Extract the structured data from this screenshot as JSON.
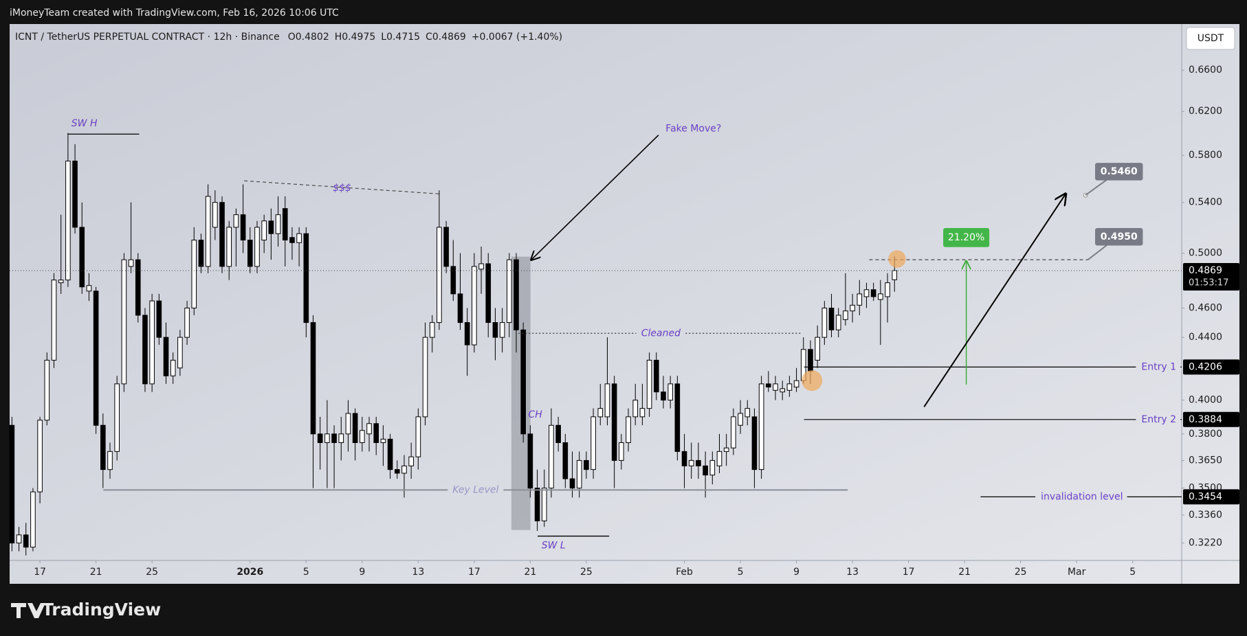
{
  "header": {
    "attribution": "iMoneyTeam created with TradingView.com, Feb 16, 2026 10:06 UTC",
    "brand": "TradingView"
  },
  "chart_data": {
    "type": "candlestick",
    "title": "ICNT / TetherUS PERPETUAL CONTRACT · 12h · Binance",
    "legend": [
      "O0.4802",
      "H0.4975",
      "L0.4715",
      "C0.4869",
      "+0.0067 (+1.40%)"
    ],
    "currency": "USDT",
    "log_scale": true,
    "grid": false,
    "up_color": "#ffffff",
    "down_color": "#000000",
    "ohlc": [
      [
        0.385,
        0.39,
        0.318,
        0.322
      ],
      [
        0.322,
        0.33,
        0.318,
        0.326
      ],
      [
        0.326,
        0.332,
        0.316,
        0.32
      ],
      [
        0.32,
        0.35,
        0.318,
        0.348
      ],
      [
        0.348,
        0.39,
        0.342,
        0.388
      ],
      [
        0.388,
        0.43,
        0.385,
        0.425
      ],
      [
        0.425,
        0.485,
        0.42,
        0.48
      ],
      [
        0.478,
        0.53,
        0.47,
        0.48
      ],
      [
        0.48,
        0.6,
        0.475,
        0.575
      ],
      [
        0.575,
        0.59,
        0.515,
        0.52
      ],
      [
        0.52,
        0.54,
        0.47,
        0.475
      ],
      [
        0.472,
        0.485,
        0.465,
        0.476
      ],
      [
        0.472,
        0.475,
        0.38,
        0.385
      ],
      [
        0.385,
        0.392,
        0.35,
        0.36
      ],
      [
        0.36,
        0.375,
        0.355,
        0.37
      ],
      [
        0.37,
        0.415,
        0.365,
        0.41
      ],
      [
        0.41,
        0.5,
        0.405,
        0.495
      ],
      [
        0.49,
        0.54,
        0.485,
        0.495
      ],
      [
        0.495,
        0.5,
        0.45,
        0.455
      ],
      [
        0.455,
        0.46,
        0.405,
        0.41
      ],
      [
        0.41,
        0.47,
        0.405,
        0.465
      ],
      [
        0.465,
        0.47,
        0.435,
        0.44
      ],
      [
        0.44,
        0.45,
        0.41,
        0.415
      ],
      [
        0.415,
        0.43,
        0.41,
        0.425
      ],
      [
        0.42,
        0.445,
        0.415,
        0.44
      ],
      [
        0.44,
        0.465,
        0.435,
        0.46
      ],
      [
        0.46,
        0.52,
        0.455,
        0.51
      ],
      [
        0.51,
        0.515,
        0.485,
        0.49
      ],
      [
        0.49,
        0.555,
        0.485,
        0.545
      ],
      [
        0.52,
        0.55,
        0.51,
        0.54
      ],
      [
        0.54,
        0.545,
        0.485,
        0.49
      ],
      [
        0.49,
        0.525,
        0.48,
        0.52
      ],
      [
        0.52,
        0.535,
        0.49,
        0.53
      ],
      [
        0.53,
        0.555,
        0.5,
        0.51
      ],
      [
        0.51,
        0.52,
        0.485,
        0.49
      ],
      [
        0.49,
        0.525,
        0.485,
        0.52
      ],
      [
        0.51,
        0.53,
        0.5,
        0.525
      ],
      [
        0.525,
        0.535,
        0.495,
        0.515
      ],
      [
        0.515,
        0.545,
        0.505,
        0.53
      ],
      [
        0.535,
        0.545,
        0.49,
        0.51
      ],
      [
        0.512,
        0.52,
        0.495,
        0.508
      ],
      [
        0.508,
        0.52,
        0.49,
        0.515
      ],
      [
        0.515,
        0.52,
        0.44,
        0.45
      ],
      [
        0.45,
        0.455,
        0.35,
        0.38
      ],
      [
        0.38,
        0.39,
        0.36,
        0.375
      ],
      [
        0.375,
        0.4,
        0.35,
        0.38
      ],
      [
        0.38,
        0.385,
        0.35,
        0.375
      ],
      [
        0.375,
        0.39,
        0.365,
        0.38
      ],
      [
        0.38,
        0.4,
        0.37,
        0.392
      ],
      [
        0.392,
        0.395,
        0.365,
        0.375
      ],
      [
        0.375,
        0.39,
        0.37,
        0.382
      ],
      [
        0.38,
        0.39,
        0.37,
        0.386
      ],
      [
        0.386,
        0.39,
        0.368,
        0.375
      ],
      [
        0.375,
        0.385,
        0.362,
        0.377
      ],
      [
        0.377,
        0.38,
        0.355,
        0.36
      ],
      [
        0.36,
        0.365,
        0.355,
        0.358
      ],
      [
        0.358,
        0.368,
        0.345,
        0.362
      ],
      [
        0.362,
        0.375,
        0.355,
        0.367
      ],
      [
        0.367,
        0.395,
        0.36,
        0.39
      ],
      [
        0.39,
        0.45,
        0.385,
        0.44
      ],
      [
        0.44,
        0.455,
        0.43,
        0.45
      ],
      [
        0.45,
        0.55,
        0.445,
        0.52
      ],
      [
        0.52,
        0.525,
        0.485,
        0.49
      ],
      [
        0.49,
        0.51,
        0.465,
        0.47
      ],
      [
        0.47,
        0.5,
        0.445,
        0.45
      ],
      [
        0.45,
        0.46,
        0.415,
        0.435
      ],
      [
        0.435,
        0.5,
        0.43,
        0.49
      ],
      [
        0.488,
        0.505,
        0.47,
        0.492
      ],
      [
        0.492,
        0.5,
        0.44,
        0.45
      ],
      [
        0.45,
        0.46,
        0.425,
        0.44
      ],
      [
        0.44,
        0.46,
        0.43,
        0.45
      ],
      [
        0.45,
        0.5,
        0.44,
        0.495
      ],
      [
        0.495,
        0.5,
        0.43,
        0.445
      ],
      [
        0.445,
        0.45,
        0.375,
        0.38
      ],
      [
        0.38,
        0.385,
        0.345,
        0.35
      ],
      [
        0.35,
        0.36,
        0.328,
        0.333
      ],
      [
        0.333,
        0.36,
        0.33,
        0.35
      ],
      [
        0.35,
        0.395,
        0.345,
        0.385
      ],
      [
        0.385,
        0.39,
        0.37,
        0.375
      ],
      [
        0.375,
        0.38,
        0.35,
        0.355
      ],
      [
        0.355,
        0.37,
        0.345,
        0.35
      ],
      [
        0.35,
        0.37,
        0.345,
        0.365
      ],
      [
        0.365,
        0.37,
        0.355,
        0.36
      ],
      [
        0.36,
        0.395,
        0.355,
        0.39
      ],
      [
        0.39,
        0.41,
        0.385,
        0.395
      ],
      [
        0.39,
        0.44,
        0.385,
        0.41
      ],
      [
        0.41,
        0.415,
        0.35,
        0.365
      ],
      [
        0.365,
        0.38,
        0.36,
        0.375
      ],
      [
        0.375,
        0.395,
        0.37,
        0.39
      ],
      [
        0.39,
        0.41,
        0.385,
        0.4
      ],
      [
        0.39,
        0.41,
        0.385,
        0.395
      ],
      [
        0.395,
        0.43,
        0.39,
        0.425
      ],
      [
        0.425,
        0.43,
        0.4,
        0.405
      ],
      [
        0.405,
        0.415,
        0.395,
        0.4
      ],
      [
        0.4,
        0.415,
        0.395,
        0.41
      ],
      [
        0.41,
        0.415,
        0.365,
        0.37
      ],
      [
        0.37,
        0.38,
        0.35,
        0.362
      ],
      [
        0.362,
        0.375,
        0.355,
        0.365
      ],
      [
        0.365,
        0.375,
        0.355,
        0.362
      ],
      [
        0.362,
        0.37,
        0.345,
        0.357
      ],
      [
        0.357,
        0.37,
        0.352,
        0.365
      ],
      [
        0.362,
        0.38,
        0.358,
        0.37
      ],
      [
        0.37,
        0.38,
        0.362,
        0.372
      ],
      [
        0.372,
        0.395,
        0.368,
        0.39
      ],
      [
        0.385,
        0.4,
        0.38,
        0.392
      ],
      [
        0.39,
        0.4,
        0.385,
        0.395
      ],
      [
        0.39,
        0.395,
        0.35,
        0.36
      ],
      [
        0.36,
        0.415,
        0.355,
        0.41
      ],
      [
        0.41,
        0.418,
        0.405,
        0.408
      ],
      [
        0.406,
        0.415,
        0.4,
        0.41
      ],
      [
        0.405,
        0.412,
        0.4,
        0.407
      ],
      [
        0.406,
        0.415,
        0.402,
        0.41
      ],
      [
        0.408,
        0.42,
        0.405,
        0.412
      ],
      [
        0.412,
        0.44,
        0.41,
        0.432
      ],
      [
        0.432,
        0.438,
        0.41,
        0.418
      ],
      [
        0.425,
        0.448,
        0.42,
        0.44
      ],
      [
        0.44,
        0.465,
        0.435,
        0.46
      ],
      [
        0.46,
        0.47,
        0.44,
        0.445
      ],
      [
        0.445,
        0.46,
        0.44,
        0.455
      ],
      [
        0.452,
        0.485,
        0.448,
        0.458
      ],
      [
        0.458,
        0.47,
        0.45,
        0.462
      ],
      [
        0.462,
        0.48,
        0.455,
        0.47
      ],
      [
        0.468,
        0.478,
        0.46,
        0.473
      ],
      [
        0.473,
        0.478,
        0.465,
        0.468
      ],
      [
        0.466,
        0.48,
        0.435,
        0.47
      ],
      [
        0.468,
        0.485,
        0.45,
        0.478
      ],
      [
        0.4802,
        0.4975,
        0.4715,
        0.4869
      ]
    ],
    "xlim": [
      -0.33,
      167
    ],
    "xticks": [
      {
        "value": 4,
        "label": "17"
      },
      {
        "value": 12,
        "label": "21"
      },
      {
        "value": 20,
        "label": "25"
      },
      {
        "value": 34,
        "label": "2026"
      },
      {
        "value": 42,
        "label": "5"
      },
      {
        "value": 50,
        "label": "9"
      },
      {
        "value": 58,
        "label": "13"
      },
      {
        "value": 66,
        "label": "17"
      },
      {
        "value": 74,
        "label": "21"
      },
      {
        "value": 82,
        "label": "25"
      },
      {
        "value": 96,
        "label": "Feb"
      },
      {
        "value": 104,
        "label": "5"
      },
      {
        "value": 112,
        "label": "9"
      },
      {
        "value": 120,
        "label": "13"
      },
      {
        "value": 128,
        "label": "17"
      },
      {
        "value": 136,
        "label": "21"
      },
      {
        "value": 144,
        "label": "25"
      },
      {
        "value": 152,
        "label": "Mar"
      },
      {
        "value": 160,
        "label": "5"
      }
    ],
    "ylim": [
      0.3136,
      0.7079
    ],
    "yticks": [
      {
        "value": 0.66,
        "label": "0.6600"
      },
      {
        "value": 0.62,
        "label": "0.6200"
      },
      {
        "value": 0.58,
        "label": "0.5800"
      },
      {
        "value": 0.54,
        "label": "0.5400"
      },
      {
        "value": 0.5,
        "label": "0.5000"
      },
      {
        "value": 0.46,
        "label": "0.4600"
      },
      {
        "value": 0.44,
        "label": "0.4400"
      },
      {
        "value": 0.4,
        "label": "0.4000"
      },
      {
        "value": 0.38,
        "label": "0.3800"
      },
      {
        "value": 0.365,
        "label": "0.3650"
      },
      {
        "value": 0.35,
        "label": "0.3500"
      },
      {
        "value": 0.336,
        "label": "0.3360"
      },
      {
        "value": 0.322,
        "label": "0.3220"
      }
    ],
    "current_price": {
      "value": 0.4869,
      "countdown": "01:53:17"
    },
    "levels": [
      {
        "name": "Entry 1",
        "value": 0.4206
      },
      {
        "name": "Entry 2",
        "value": 0.3884
      },
      {
        "name": "invalidation level",
        "value": 0.3454
      }
    ],
    "targets": [
      {
        "value": 0.495,
        "label": "0.4950"
      },
      {
        "value": 0.546,
        "label": "0.5460"
      }
    ],
    "gain": {
      "value": 21.2,
      "label": "21.20%"
    },
    "drawings": {
      "sw_high": {
        "text": "SW H",
        "value": 0.599
      },
      "liquidity": {
        "text": "$$$",
        "values": [
          0.558,
          0.547
        ]
      },
      "cleaned": {
        "text": "Cleaned",
        "value": 0.4427
      },
      "key_level": {
        "text": "Key Level",
        "value": 0.349
      },
      "sw_low": {
        "text": "SW L",
        "value": 0.3254
      },
      "fake_move": {
        "text": "Fake Move?"
      },
      "change": {
        "text": "CH"
      }
    }
  }
}
